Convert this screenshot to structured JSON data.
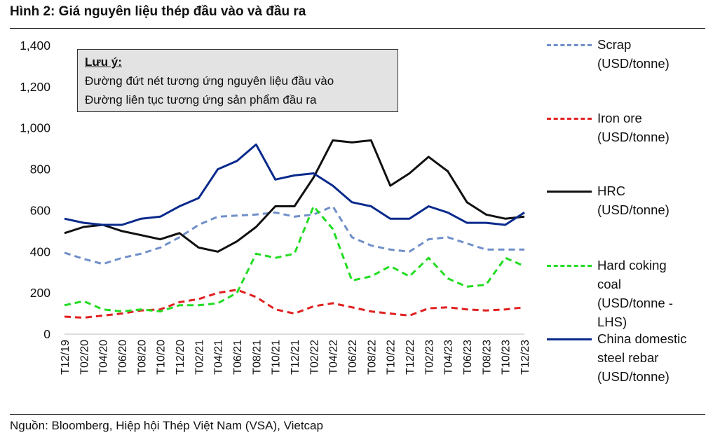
{
  "title": "Hình 2: Giá nguyên liệu thép đầu vào và đầu ra",
  "source": "Nguồn:  Bloomberg, Hiệp hội Thép Việt Nam (VSA), Vietcap",
  "note": {
    "heading": "Lưu ý:",
    "line1": "Đường đứt nét tương ứng nguyên liệu đầu vào",
    "line2": "Đường liên tục tương ứng sản phẩm đầu ra"
  },
  "legend": [
    {
      "label": "Scrap\n(USD/tonne)",
      "color": "#6f8fc9",
      "style": "dashed"
    },
    {
      "label": "Iron ore\n(USD/tonne)",
      "color": "#e02020",
      "style": "dashed"
    },
    {
      "label": "HRC\n(USD/tonne)",
      "color": "#111111",
      "style": "solid"
    },
    {
      "label": "Hard coking\ncoal\n(USD/tonne -\nLHS)",
      "color": "#22dd22",
      "style": "dashed"
    },
    {
      "label": "China domestic\nsteel rebar\n(USD/tonne)",
      "color": "#0a2a8c",
      "style": "solid"
    }
  ],
  "chart_data": {
    "type": "line",
    "title": "Hình 2: Giá nguyên liệu thép đầu vào và đầu ra",
    "ylim": [
      0,
      1400
    ],
    "yticks": [
      "0",
      "200",
      "400",
      "600",
      "800",
      "1,000",
      "1,200",
      "1,400"
    ],
    "categories": [
      "T12/19",
      "T02/20",
      "T04/20",
      "T06/20",
      "T08/20",
      "T10/20",
      "T12/20",
      "T02/21",
      "T04/21",
      "T06/21",
      "T08/21",
      "T10/21",
      "T12/21",
      "T02/22",
      "T04/22",
      "T06/22",
      "T08/22",
      "T10/22",
      "T12/22",
      "T02/23",
      "T04/23",
      "T06/23",
      "T08/23",
      "T10/23",
      "T12/23"
    ],
    "series": [
      {
        "name": "Scrap (USD/tonne)",
        "values": [
          395,
          365,
          340,
          370,
          390,
          420,
          470,
          530,
          570,
          575,
          580,
          590,
          570,
          580,
          620,
          470,
          430,
          410,
          400,
          460,
          470,
          440,
          410,
          410,
          410
        ]
      },
      {
        "name": "Iron ore (USD/tonne)",
        "values": [
          85,
          80,
          90,
          100,
          115,
          120,
          155,
          170,
          200,
          215,
          180,
          120,
          100,
          135,
          150,
          130,
          110,
          100,
          90,
          125,
          130,
          120,
          115,
          120,
          130
        ]
      },
      {
        "name": "HRC (USD/tonne)",
        "values": [
          490,
          520,
          530,
          500,
          480,
          460,
          490,
          420,
          400,
          450,
          520,
          620,
          620,
          760,
          940,
          930,
          940,
          720,
          780,
          860,
          790,
          640,
          580,
          560,
          570
        ]
      },
      {
        "name": "Hard coking coal (USD/tonne - LHS)",
        "values": [
          140,
          160,
          120,
          110,
          120,
          110,
          140,
          140,
          150,
          200,
          390,
          370,
          390,
          620,
          510,
          260,
          280,
          330,
          280,
          370,
          270,
          230,
          240,
          370,
          330
        ]
      },
      {
        "name": "China domestic steel rebar (USD/tonne)",
        "values": [
          560,
          540,
          530,
          530,
          560,
          570,
          620,
          660,
          800,
          840,
          920,
          750,
          770,
          780,
          720,
          640,
          620,
          560,
          560,
          620,
          590,
          540,
          540,
          530,
          590
        ]
      }
    ]
  }
}
